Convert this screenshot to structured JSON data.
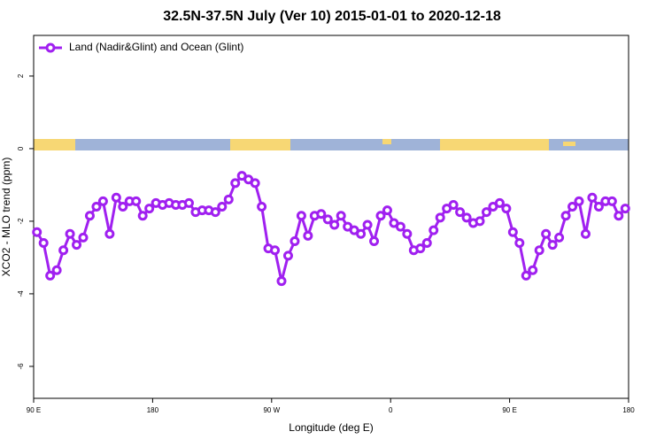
{
  "chart_data": {
    "type": "line",
    "title": "32.5N-37.5N July (Ver 10)   2015-01-01 to 2020-12-18",
    "xlabel": "Longitude (deg E)",
    "ylabel": "XCO2 - MLO trend (ppm)",
    "xlim": [
      90,
      540
    ],
    "ylim": [
      -6.88,
      3.12
    ],
    "xticks": [
      {
        "value": 90,
        "label": "90 E"
      },
      {
        "value": 180,
        "label": "180"
      },
      {
        "value": 270,
        "label": "90 W"
      },
      {
        "value": 360,
        "label": "0"
      },
      {
        "value": 450,
        "label": "90 E"
      },
      {
        "value": 540,
        "label": "180"
      }
    ],
    "yticks": [
      -6,
      -4,
      -2,
      0,
      2
    ],
    "legend": "top-left",
    "x": [
      92.5,
      97.5,
      102.5,
      107.5,
      112.5,
      117.5,
      122.5,
      127.5,
      132.5,
      137.5,
      142.5,
      147.5,
      152.5,
      157.5,
      162.5,
      167.5,
      172.5,
      177.5,
      182.5,
      187.5,
      192.5,
      197.5,
      202.5,
      207.5,
      212.5,
      217.5,
      222.5,
      227.5,
      232.5,
      237.5,
      242.5,
      247.5,
      252.5,
      257.5,
      262.5,
      267.5,
      272.5,
      277.5,
      282.5,
      287.5,
      292.5,
      297.5,
      302.5,
      307.5,
      312.5,
      317.5,
      322.5,
      327.5,
      332.5,
      337.5,
      342.5,
      347.5,
      352.5,
      357.5,
      362.5,
      367.5,
      372.5,
      377.5,
      382.5,
      387.5,
      392.5,
      397.5,
      402.5,
      407.5,
      412.5,
      417.5,
      422.5,
      427.5,
      432.5,
      437.5,
      442.5,
      447.5,
      452.5,
      457.5,
      462.5,
      467.5,
      472.5,
      477.5,
      482.5,
      487.5,
      492.5,
      497.5,
      502.5,
      507.5,
      512.5,
      517.5,
      522.5,
      527.5,
      532.5,
      537.5
    ],
    "series": [
      {
        "name": "Land (Nadir&Glint) and Ocean (Glint)",
        "color": "#a020f0",
        "values": [
          -2.3,
          -2.6,
          -3.5,
          -3.35,
          -2.8,
          -2.35,
          -2.65,
          -2.45,
          -1.85,
          -1.6,
          -1.45,
          -2.35,
          -1.35,
          -1.6,
          -1.45,
          -1.45,
          -1.85,
          -1.65,
          -1.5,
          -1.55,
          -1.5,
          -1.55,
          -1.55,
          -1.5,
          -1.75,
          -1.7,
          -1.7,
          -1.75,
          -1.6,
          -1.4,
          -0.95,
          -0.75,
          -0.85,
          -0.95,
          -1.6,
          -2.75,
          -2.8,
          -3.65,
          -2.95,
          -2.55,
          -1.85,
          -2.4,
          -1.85,
          -1.8,
          -1.95,
          -2.1,
          -1.85,
          -2.15,
          -2.25,
          -2.35,
          -2.1,
          -2.55,
          -1.85,
          -1.7,
          -2.05,
          -2.15,
          -2.35,
          -2.8,
          -2.75,
          -2.6,
          -2.25,
          -1.9,
          -1.65,
          -1.55,
          -1.75,
          -1.9,
          -2.05,
          -2.0,
          -1.75,
          -1.6,
          -1.5,
          -1.65,
          -2.3,
          -2.6,
          -3.5,
          -3.35,
          -2.8,
          -2.35,
          -2.65,
          -2.45,
          -1.85,
          -1.6,
          -1.45,
          -2.35,
          -1.35,
          -1.6,
          -1.45,
          -1.45,
          -1.85,
          -1.65
        ]
      }
    ]
  }
}
